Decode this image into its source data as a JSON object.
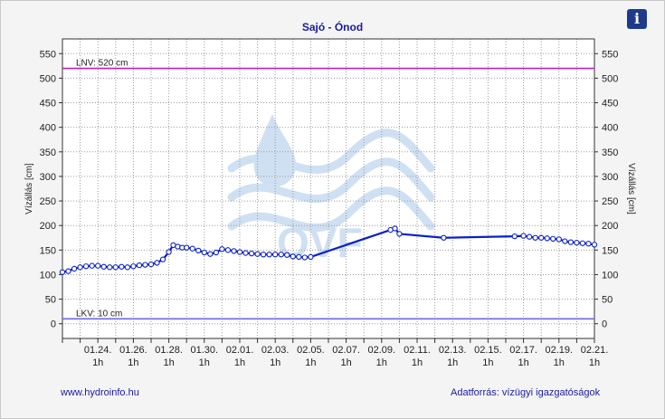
{
  "chart_data": {
    "type": "line",
    "title": "Sajó - Ónod",
    "ylabel": "Vízállás [cm]",
    "ylabel_right": "Vízállás [cm]",
    "ylim": [
      -30,
      580
    ],
    "yticks": [
      0,
      50,
      100,
      150,
      200,
      250,
      300,
      350,
      400,
      450,
      500,
      550
    ],
    "xlim": [
      "01.22.",
      "02.21."
    ],
    "xticks": [
      {
        "date": "01.24.",
        "sub": "1h"
      },
      {
        "date": "01.26.",
        "sub": "1h"
      },
      {
        "date": "01.28.",
        "sub": "1h"
      },
      {
        "date": "01.30.",
        "sub": "1h"
      },
      {
        "date": "02.01.",
        "sub": "1h"
      },
      {
        "date": "02.03.",
        "sub": "1h"
      },
      {
        "date": "02.05.",
        "sub": "1h"
      },
      {
        "date": "02.07.",
        "sub": "1h"
      },
      {
        "date": "02.09.",
        "sub": "1h"
      },
      {
        "date": "02.11.",
        "sub": "1h"
      },
      {
        "date": "02.13.",
        "sub": "1h"
      },
      {
        "date": "02.15.",
        "sub": "1h"
      },
      {
        "date": "02.17.",
        "sub": "1h"
      },
      {
        "date": "02.19.",
        "sub": "1h"
      },
      {
        "date": "02.21.",
        "sub": "1h"
      }
    ],
    "grid": true,
    "reference_lines": [
      {
        "label": "LNV: 520 cm",
        "value": 520,
        "color": "#c020c0"
      },
      {
        "label": "LKV: 10 cm",
        "value": 10,
        "color": "#6a6ae0"
      }
    ],
    "series": [
      {
        "color": "#0a20c8",
        "points": [
          [
            "01.22. 00h",
            105
          ],
          [
            "01.22. 08h",
            107
          ],
          [
            "01.22. 16h",
            112
          ],
          [
            "01.23. 00h",
            115
          ],
          [
            "01.23. 08h",
            117
          ],
          [
            "01.23. 16h",
            118
          ],
          [
            "01.24. 00h",
            118
          ],
          [
            "01.24. 08h",
            116
          ],
          [
            "01.24. 16h",
            115
          ],
          [
            "01.25. 00h",
            115
          ],
          [
            "01.25. 08h",
            116
          ],
          [
            "01.25. 16h",
            115
          ],
          [
            "01.26. 00h",
            117
          ],
          [
            "01.26. 08h",
            119
          ],
          [
            "01.26. 16h",
            120
          ],
          [
            "01.27. 00h",
            121
          ],
          [
            "01.27. 08h",
            124
          ],
          [
            "01.27. 16h",
            131
          ],
          [
            "01.28. 00h",
            146
          ],
          [
            "01.28. 06h",
            160
          ],
          [
            "01.28. 12h",
            157
          ],
          [
            "01.28. 18h",
            155
          ],
          [
            "01.29. 00h",
            155
          ],
          [
            "01.29. 08h",
            153
          ],
          [
            "01.29. 16h",
            149
          ],
          [
            "01.30. 00h",
            145
          ],
          [
            "01.30. 08h",
            142
          ],
          [
            "01.30. 16h",
            145
          ],
          [
            "01.31. 00h",
            152
          ],
          [
            "01.31. 08h",
            150
          ],
          [
            "01.31. 16h",
            148
          ],
          [
            "02.01. 00h",
            146
          ],
          [
            "02.01. 08h",
            144
          ],
          [
            "02.01. 16h",
            143
          ],
          [
            "02.02. 00h",
            142
          ],
          [
            "02.02. 08h",
            141
          ],
          [
            "02.02. 16h",
            141
          ],
          [
            "02.03. 00h",
            141
          ],
          [
            "02.03. 08h",
            141
          ],
          [
            "02.03. 16h",
            140
          ],
          [
            "02.04. 00h",
            137
          ],
          [
            "02.04. 08h",
            136
          ],
          [
            "02.04. 16h",
            135
          ],
          [
            "02.05. 00h",
            136
          ],
          [
            "02.09. 12h",
            191
          ],
          [
            "02.09. 18h",
            194
          ],
          [
            "02.10. 00h",
            183
          ],
          [
            "02.12. 12h",
            175
          ],
          [
            "02.16. 12h",
            178
          ],
          [
            "02.17. 00h",
            179
          ],
          [
            "02.17. 08h",
            177
          ],
          [
            "02.17. 16h",
            175
          ],
          [
            "02.18. 00h",
            175
          ],
          [
            "02.18. 08h",
            174
          ],
          [
            "02.18. 16h",
            173
          ],
          [
            "02.19. 00h",
            172
          ],
          [
            "02.19. 08h",
            168
          ],
          [
            "02.19. 16h",
            166
          ],
          [
            "02.20. 00h",
            165
          ],
          [
            "02.20. 08h",
            164
          ],
          [
            "02.20. 16h",
            163
          ],
          [
            "02.21. 00h",
            161
          ]
        ]
      }
    ]
  },
  "info_icon": "info-icon",
  "footer": {
    "link": "www.hydroinfo.hu",
    "source": "Adatforrás: vízügyi igazgatóságok"
  },
  "watermark": "OVF"
}
